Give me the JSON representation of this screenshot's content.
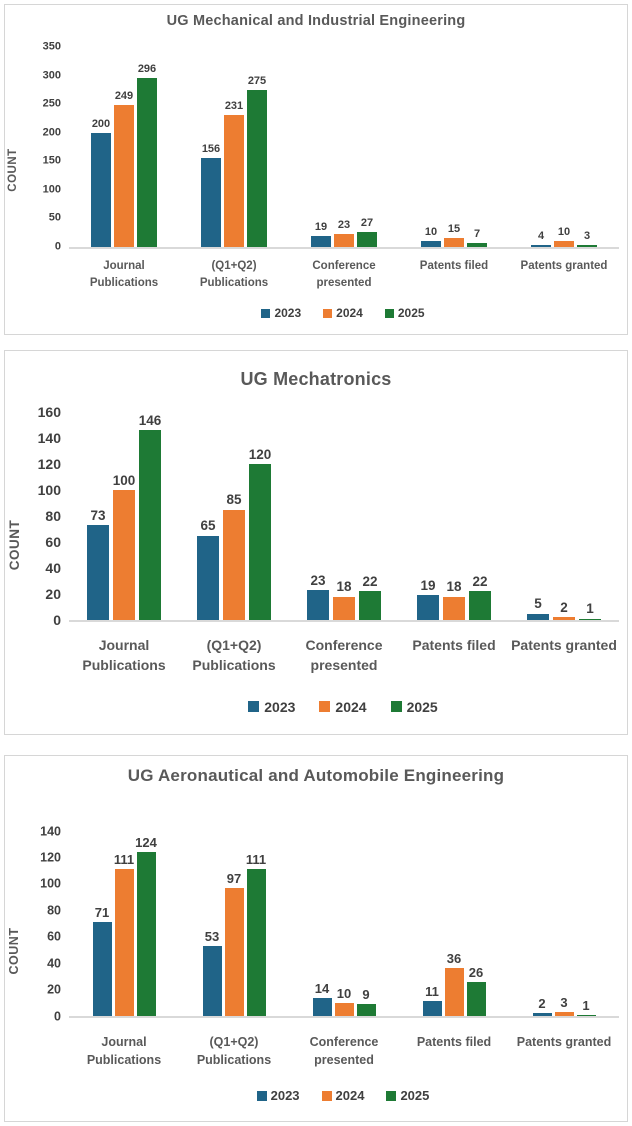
{
  "chart_data": [
    {
      "type": "bar",
      "title": "UG Mechanical and Industrial Engineering",
      "xlabel": "",
      "ylabel": "COUNT",
      "ylim": [
        0,
        350
      ],
      "ytick_step": 50,
      "grid": false,
      "legend_position": "bottom",
      "categories": [
        "Journal Publications",
        "(Q1+Q2) Publications",
        "Conference presented",
        "Patents filed",
        "Patents granted"
      ],
      "series": [
        {
          "name": "2023",
          "color": "#206488",
          "values": [
            200,
            156,
            19,
            10,
            4
          ]
        },
        {
          "name": "2024",
          "color": "#ED7D31",
          "values": [
            249,
            231,
            23,
            15,
            10
          ]
        },
        {
          "name": "2025",
          "color": "#1E7A35",
          "values": [
            296,
            275,
            27,
            7,
            3
          ]
        }
      ]
    },
    {
      "type": "bar",
      "title": "UG Mechatronics",
      "xlabel": "",
      "ylabel": "COUNT",
      "ylim": [
        0,
        160
      ],
      "ytick_step": 20,
      "grid": false,
      "legend_position": "bottom",
      "categories": [
        "Journal Publications",
        "(Q1+Q2) Publications",
        "Conference presented",
        "Patents filed",
        "Patents granted"
      ],
      "series": [
        {
          "name": "2023",
          "color": "#206488",
          "values": [
            73,
            65,
            23,
            19,
            5
          ]
        },
        {
          "name": "2024",
          "color": "#ED7D31",
          "values": [
            100,
            85,
            18,
            18,
            2
          ]
        },
        {
          "name": "2025",
          "color": "#1E7A35",
          "values": [
            146,
            120,
            22,
            22,
            1
          ]
        }
      ]
    },
    {
      "type": "bar",
      "title": "UG Aeronautical and Automobile Engineering",
      "xlabel": "",
      "ylabel": "COUNT",
      "ylim": [
        0,
        140
      ],
      "ytick_step": 20,
      "grid": false,
      "legend_position": "bottom",
      "categories": [
        "Journal Publications",
        "(Q1+Q2) Publications",
        "Conference presented",
        "Patents filed",
        "Patents granted"
      ],
      "series": [
        {
          "name": "2023",
          "color": "#206488",
          "values": [
            71,
            53,
            14,
            11,
            2
          ]
        },
        {
          "name": "2024",
          "color": "#ED7D31",
          "values": [
            111,
            97,
            10,
            36,
            3
          ]
        },
        {
          "name": "2025",
          "color": "#1E7A35",
          "values": [
            124,
            111,
            9,
            26,
            1
          ]
        }
      ]
    }
  ]
}
